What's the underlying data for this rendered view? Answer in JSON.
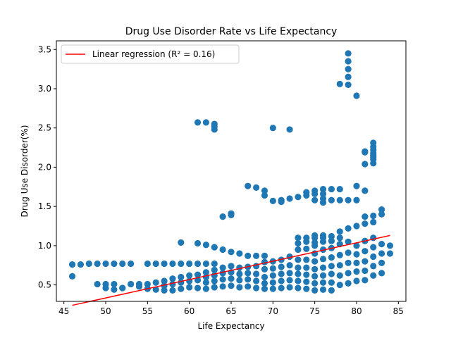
{
  "chart_data": {
    "type": "scatter",
    "title": "Drug Use Disorder Rate vs Life Expectancy",
    "xlabel": "Life Expectancy",
    "ylabel": "Drug Use Disorder(%)",
    "xlim": [
      44.1,
      85.9
    ],
    "ylim": [
      0.29,
      3.61
    ],
    "xticks": [
      45,
      50,
      55,
      60,
      65,
      70,
      75,
      80,
      85
    ],
    "yticks": [
      0.5,
      1.0,
      1.5,
      2.0,
      2.5,
      3.0,
      3.5
    ],
    "grid": false,
    "legend": {
      "position": "upper-left",
      "entries": [
        "Linear regression (R² = 0.16)"
      ]
    },
    "colors": {
      "points": "#1f77b4",
      "regression": "#ff0000"
    },
    "regression": {
      "x": [
        46,
        84
      ],
      "y": [
        0.24,
        1.13
      ]
    },
    "series": [
      {
        "type": "scatter",
        "x": [
          46,
          46,
          47,
          48,
          49,
          50,
          51,
          52,
          53,
          55,
          56,
          57,
          58,
          59,
          60,
          61,
          62,
          63,
          49,
          50,
          50,
          51,
          51,
          52,
          52,
          53,
          54,
          54,
          55,
          55,
          56,
          56,
          57,
          57,
          57,
          58,
          58,
          58,
          59,
          59,
          59,
          60,
          60,
          60,
          61,
          61,
          61,
          62,
          62,
          62,
          62,
          63,
          63,
          63,
          63,
          64,
          64,
          64,
          64,
          65,
          65,
          65,
          65,
          66,
          66,
          66,
          66,
          67,
          67,
          67,
          67,
          68,
          68,
          68,
          68,
          69,
          69,
          69,
          69,
          69,
          70,
          70,
          70,
          70,
          70,
          71,
          71,
          71,
          71,
          71,
          72,
          72,
          72,
          72,
          72,
          73,
          73,
          73,
          73,
          73,
          73,
          74,
          74,
          74,
          74,
          74,
          74,
          75,
          75,
          75,
          75,
          75,
          75,
          75,
          76,
          76,
          76,
          76,
          76,
          76,
          77,
          77,
          77,
          77,
          77,
          77,
          78,
          78,
          78,
          78,
          78,
          79,
          79,
          79,
          79,
          79,
          80,
          80,
          80,
          80,
          80,
          81,
          81,
          81,
          81,
          81,
          82,
          82,
          82,
          82,
          82,
          83,
          83,
          83,
          83,
          84,
          84,
          73,
          73,
          74,
          74,
          75,
          75,
          75,
          76,
          76,
          76,
          77,
          77,
          78,
          78,
          79,
          80,
          81,
          81,
          82,
          82,
          83,
          83,
          59,
          61,
          62,
          63,
          64,
          65,
          66,
          67,
          68,
          69,
          67,
          68,
          69,
          69,
          70,
          71,
          71,
          72,
          73,
          74,
          74,
          75,
          75,
          75,
          76,
          76,
          76,
          76,
          77,
          77,
          78,
          78,
          79,
          80,
          80,
          81,
          61,
          62,
          63,
          63,
          63,
          70,
          72,
          64,
          65,
          65,
          78,
          79,
          79,
          79,
          79,
          79,
          80,
          81,
          81,
          81,
          82,
          82,
          82,
          82,
          82,
          82,
          82,
          82
        ],
        "y": [
          0.61,
          0.76,
          0.76,
          0.77,
          0.77,
          0.77,
          0.77,
          0.77,
          0.77,
          0.77,
          0.77,
          0.77,
          0.77,
          0.77,
          0.77,
          0.77,
          0.77,
          0.77,
          0.51,
          0.46,
          0.51,
          0.44,
          0.51,
          0.46,
          0.46,
          0.51,
          0.48,
          0.51,
          0.45,
          0.51,
          0.44,
          0.53,
          0.43,
          0.49,
          0.55,
          0.43,
          0.51,
          0.58,
          0.45,
          0.53,
          0.6,
          0.47,
          0.55,
          0.62,
          0.46,
          0.56,
          0.63,
          0.45,
          0.53,
          0.6,
          0.66,
          0.47,
          0.55,
          0.62,
          0.69,
          0.48,
          0.57,
          0.65,
          0.72,
          0.49,
          0.58,
          0.66,
          0.74,
          0.47,
          0.56,
          0.64,
          0.72,
          0.48,
          0.57,
          0.65,
          0.73,
          0.46,
          0.55,
          0.64,
          0.74,
          0.45,
          0.52,
          0.6,
          0.7,
          0.79,
          0.45,
          0.53,
          0.62,
          0.71,
          0.8,
          0.46,
          0.55,
          0.64,
          0.73,
          0.82,
          0.47,
          0.56,
          0.65,
          0.75,
          0.86,
          0.46,
          0.55,
          0.64,
          0.72,
          0.82,
          0.95,
          0.45,
          0.54,
          0.63,
          0.72,
          0.82,
          0.96,
          0.43,
          0.52,
          0.61,
          0.7,
          0.8,
          0.9,
          1.0,
          0.44,
          0.53,
          0.62,
          0.72,
          0.83,
          0.95,
          0.43,
          0.53,
          0.64,
          0.74,
          0.85,
          0.97,
          0.5,
          0.62,
          0.75,
          0.88,
          1.02,
          0.52,
          0.65,
          0.78,
          0.91,
          1.05,
          0.55,
          0.67,
          0.78,
          0.89,
          1.0,
          0.56,
          0.68,
          0.8,
          0.93,
          1.06,
          0.62,
          0.74,
          0.86,
          0.98,
          1.1,
          0.65,
          0.78,
          0.9,
          1.02,
          0.9,
          1.0,
          1.03,
          1.1,
          1.05,
          1.1,
          1.04,
          1.1,
          1.13,
          1.05,
          1.1,
          1.13,
          1.06,
          1.12,
          1.1,
          1.18,
          1.22,
          1.25,
          1.28,
          1.37,
          1.3,
          1.38,
          1.4,
          1.46,
          1.04,
          1.03,
          1.01,
          0.98,
          0.95,
          0.92,
          0.9,
          0.87,
          0.87,
          0.87,
          1.76,
          1.74,
          1.64,
          1.7,
          1.57,
          1.56,
          1.58,
          1.6,
          1.62,
          1.64,
          1.68,
          1.58,
          1.66,
          1.7,
          1.55,
          1.6,
          1.66,
          1.72,
          1.58,
          1.72,
          1.58,
          1.72,
          1.58,
          1.58,
          1.76,
          1.7,
          2.57,
          2.57,
          2.48,
          2.52,
          2.55,
          2.5,
          2.48,
          1.37,
          1.39,
          1.41,
          3.06,
          3.05,
          3.15,
          3.25,
          3.35,
          3.45,
          2.91,
          2.04,
          2.19,
          2.2,
          2.05,
          2.1,
          2.13,
          2.15,
          2.18,
          2.22,
          2.26,
          2.31
        ]
      }
    ]
  }
}
